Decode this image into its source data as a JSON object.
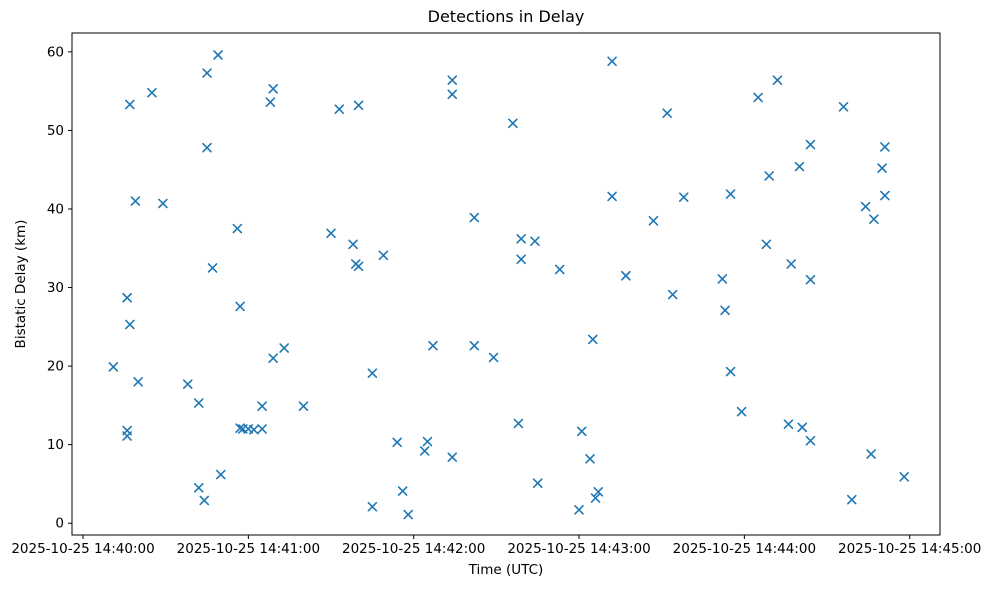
{
  "chart_data": {
    "type": "scatter",
    "title": "Detections in Delay",
    "xlabel": "Time (UTC)",
    "ylabel": "Bistatic Delay (km)",
    "marker": "x",
    "marker_color": "#1f77b4",
    "axis_color": "#000000",
    "background_color": "#ffffff",
    "grid": false,
    "legend": null,
    "x_epoch": "2025-10-25 14:40:00",
    "x_tick_labels": [
      "2025-10-25 14:40:00",
      "2025-10-25 14:41:00",
      "2025-10-25 14:42:00",
      "2025-10-25 14:43:00",
      "2025-10-25 14:44:00",
      "2025-10-25 14:45:00"
    ],
    "x_tick_seconds": [
      0,
      60,
      120,
      180,
      240,
      300
    ],
    "y_tick_labels": [
      "0",
      "10",
      "20",
      "30",
      "40",
      "50",
      "60"
    ],
    "y_ticks": [
      0,
      10,
      20,
      30,
      40,
      50,
      60
    ],
    "x_range_seconds": [
      -4,
      311
    ],
    "y_range": [
      -1.5,
      62.4
    ],
    "points": [
      [
        "14:40:11",
        19.9
      ],
      [
        "14:40:16",
        28.7
      ],
      [
        "14:40:16",
        11.8
      ],
      [
        "14:40:16",
        11.1
      ],
      [
        "14:40:17",
        53.3
      ],
      [
        "14:40:17",
        25.3
      ],
      [
        "14:40:19",
        41.0
      ],
      [
        "14:40:20",
        18.0
      ],
      [
        "14:40:25",
        54.8
      ],
      [
        "14:40:29",
        40.7
      ],
      [
        "14:40:38",
        17.7
      ],
      [
        "14:40:42",
        15.3
      ],
      [
        "14:40:42",
        4.5
      ],
      [
        "14:40:44",
        2.9
      ],
      [
        "14:40:45",
        57.3
      ],
      [
        "14:40:45",
        47.8
      ],
      [
        "14:40:47",
        32.5
      ],
      [
        "14:40:49",
        59.6
      ],
      [
        "14:40:50",
        6.2
      ],
      [
        "14:40:56",
        37.5
      ],
      [
        "14:40:57",
        27.6
      ],
      [
        "14:40:57",
        12.1
      ],
      [
        "14:40:58",
        12.0
      ],
      [
        "14:41:00",
        12.0
      ],
      [
        "14:41:02",
        11.9
      ],
      [
        "14:41:05",
        12.0
      ],
      [
        "14:41:05",
        14.9
      ],
      [
        "14:41:08",
        53.6
      ],
      [
        "14:41:09",
        55.3
      ],
      [
        "14:41:09",
        21.0
      ],
      [
        "14:41:13",
        22.3
      ],
      [
        "14:41:20",
        14.9
      ],
      [
        "14:41:30",
        36.9
      ],
      [
        "14:41:33",
        52.7
      ],
      [
        "14:41:38",
        35.5
      ],
      [
        "14:41:39",
        33.0
      ],
      [
        "14:41:40",
        53.2
      ],
      [
        "14:41:40",
        32.7
      ],
      [
        "14:41:45",
        19.1
      ],
      [
        "14:41:45",
        2.1
      ],
      [
        "14:41:49",
        34.1
      ],
      [
        "14:41:54",
        10.3
      ],
      [
        "14:41:56",
        4.1
      ],
      [
        "14:41:58",
        1.1
      ],
      [
        "14:42:04",
        9.2
      ],
      [
        "14:42:05",
        10.4
      ],
      [
        "14:42:07",
        22.6
      ],
      [
        "14:42:14",
        56.4
      ],
      [
        "14:42:14",
        54.6
      ],
      [
        "14:42:14",
        8.4
      ],
      [
        "14:42:22",
        38.9
      ],
      [
        "14:42:22",
        22.6
      ],
      [
        "14:42:29",
        21.1
      ],
      [
        "14:42:36",
        50.9
      ],
      [
        "14:42:38",
        12.7
      ],
      [
        "14:42:39",
        36.2
      ],
      [
        "14:42:39",
        33.6
      ],
      [
        "14:42:44",
        35.9
      ],
      [
        "14:42:45",
        5.1
      ],
      [
        "14:42:53",
        32.3
      ],
      [
        "14:43:00",
        1.7
      ],
      [
        "14:43:01",
        11.7
      ],
      [
        "14:43:04",
        8.2
      ],
      [
        "14:43:05",
        23.4
      ],
      [
        "14:43:06",
        3.2
      ],
      [
        "14:43:07",
        4.0
      ],
      [
        "14:43:12",
        58.8
      ],
      [
        "14:43:12",
        41.6
      ],
      [
        "14:43:17",
        31.5
      ],
      [
        "14:43:27",
        38.5
      ],
      [
        "14:43:32",
        52.2
      ],
      [
        "14:43:34",
        29.1
      ],
      [
        "14:43:38",
        41.5
      ],
      [
        "14:43:52",
        31.1
      ],
      [
        "14:43:53",
        27.1
      ],
      [
        "14:43:55",
        41.9
      ],
      [
        "14:43:55",
        19.3
      ],
      [
        "14:43:59",
        14.2
      ],
      [
        "14:44:05",
        54.2
      ],
      [
        "14:44:08",
        35.5
      ],
      [
        "14:44:09",
        44.2
      ],
      [
        "14:44:12",
        56.4
      ],
      [
        "14:44:16",
        12.6
      ],
      [
        "14:44:17",
        33.0
      ],
      [
        "14:44:20",
        45.4
      ],
      [
        "14:44:21",
        12.2
      ],
      [
        "14:44:24",
        48.2
      ],
      [
        "14:44:24",
        31.0
      ],
      [
        "14:44:24",
        10.5
      ],
      [
        "14:44:36",
        53.0
      ],
      [
        "14:44:39",
        3.0
      ],
      [
        "14:44:44",
        40.3
      ],
      [
        "14:44:46",
        8.8
      ],
      [
        "14:44:47",
        38.7
      ],
      [
        "14:44:50",
        45.2
      ],
      [
        "14:44:51",
        47.9
      ],
      [
        "14:44:51",
        41.7
      ],
      [
        "14:44:58",
        5.9
      ]
    ]
  }
}
